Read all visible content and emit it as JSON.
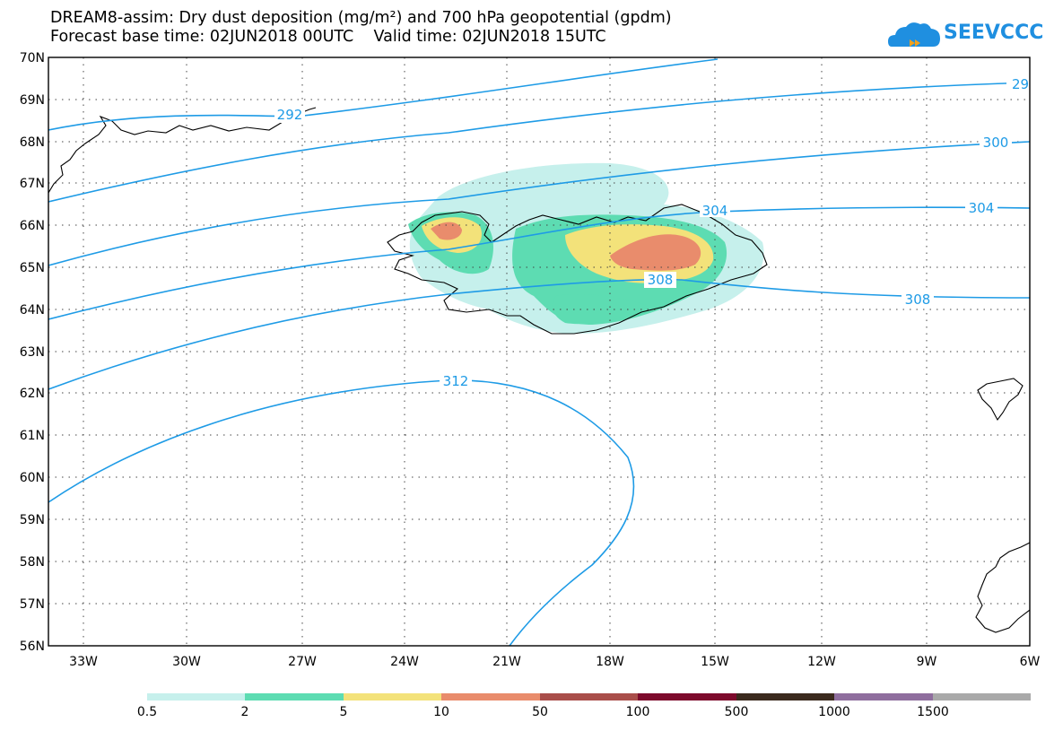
{
  "title": {
    "line1": "DREAM8-assim: Dry dust deposition (mg/m²) and 700 hPa geopotential (gpdm)",
    "line2": "Forecast base time: 02JUN2018 00UTC    Valid time: 02JUN2018 15UTC"
  },
  "logo": {
    "text": "SEEVCCC",
    "icon": "cloud-logo-icon",
    "color": "#1f8fe0"
  },
  "map": {
    "lat_labels": [
      "70N",
      "69N",
      "68N",
      "67N",
      "66N",
      "65N",
      "64N",
      "63N",
      "62N",
      "61N",
      "60N",
      "59N",
      "58N",
      "57N",
      "56N"
    ],
    "lat_values": [
      70,
      69,
      68,
      67,
      66,
      65,
      64,
      63,
      62,
      61,
      60,
      59,
      58,
      57,
      56
    ],
    "lon_labels": [
      "33W",
      "30W",
      "27W",
      "24W",
      "21W",
      "18W",
      "15W",
      "12W",
      "9W",
      "6W"
    ],
    "lon_values": [
      -33,
      -30,
      -27,
      -24,
      -21,
      -18,
      -15,
      -12,
      -9,
      -6
    ],
    "lat_range": [
      56,
      70
    ],
    "lon_range": [
      -34.5,
      -6
    ],
    "grid": "dotted",
    "contour_color": "#1e9be6",
    "contour_labels": [
      "292",
      "29",
      "300",
      "304",
      "304",
      "308",
      "308",
      "312"
    ]
  },
  "legend": {
    "colors": [
      "#c6f0ec",
      "#5ddcb2",
      "#f3e27a",
      "#e98c6c",
      "#a94e4a",
      "#7d0a2c",
      "#3b2a1e",
      "#8f6e9e",
      "#a9a9a9"
    ],
    "labels": [
      "0.5",
      "2",
      "5",
      "10",
      "50",
      "100",
      "500",
      "1000",
      "1500"
    ]
  }
}
